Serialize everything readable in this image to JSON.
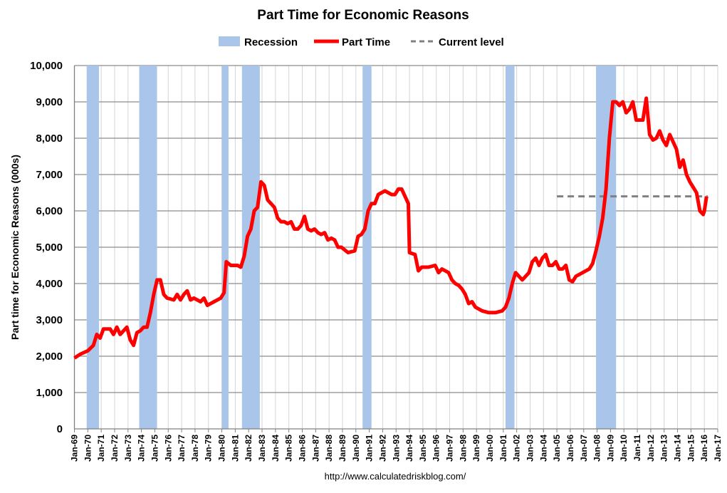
{
  "chart_data": {
    "type": "line",
    "title": "Part Time for Economic Reasons",
    "ylabel": "Part time for Economic Reasons (000s)",
    "xlabel": "",
    "source": "http://www.calculatedriskblog.com/",
    "ylim": [
      0,
      10000
    ],
    "xlim": [
      "1969-01",
      "2017-01"
    ],
    "yticks": [
      "0",
      "1,000",
      "2,000",
      "3,000",
      "4,000",
      "5,000",
      "6,000",
      "7,000",
      "8,000",
      "9,000",
      "10,000"
    ],
    "xticks": [
      "Jan-69",
      "Jan-70",
      "Jan-71",
      "Jan-72",
      "Jan-73",
      "Jan-74",
      "Jan-75",
      "Jan-76",
      "Jan-77",
      "Jan-78",
      "Jan-79",
      "Jan-80",
      "Jan-81",
      "Jan-82",
      "Jan-83",
      "Jan-84",
      "Jan-85",
      "Jan-86",
      "Jan-87",
      "Jan-88",
      "Jan-89",
      "Jan-90",
      "Jan-91",
      "Jan-92",
      "Jan-93",
      "Jan-94",
      "Jan-95",
      "Jan-96",
      "Jan-97",
      "Jan-98",
      "Jan-99",
      "Jan-00",
      "Jan-01",
      "Jan-02",
      "Jan-03",
      "Jan-04",
      "Jan-05",
      "Jan-06",
      "Jan-07",
      "Jan-08",
      "Jan-09",
      "Jan-10",
      "Jan-11",
      "Jan-12",
      "Jan-13",
      "Jan-14",
      "Jan-15",
      "Jan-16",
      "Jan-17"
    ],
    "grid": true,
    "legend": {
      "placement": "top",
      "entries": [
        {
          "name": "Recession",
          "kind": "band",
          "color": "#a9c6ea"
        },
        {
          "name": "Part Time",
          "kind": "line",
          "color": "#ff0000"
        },
        {
          "name": "Current level",
          "kind": "dashed",
          "color": "#808080"
        }
      ]
    },
    "recessions": [
      [
        "1969-12",
        "1970-11"
      ],
      [
        "1973-11",
        "1975-03"
      ],
      [
        "1980-01",
        "1980-07"
      ],
      [
        "1981-07",
        "1982-11"
      ],
      [
        "1990-07",
        "1991-03"
      ],
      [
        "2001-03",
        "2001-11"
      ],
      [
        "2007-12",
        "2009-06"
      ]
    ],
    "current_level": {
      "value": 6400,
      "from": "2005-01",
      "to": "2016-04"
    },
    "series": [
      {
        "name": "Part Time",
        "color": "#ff0000",
        "points": [
          [
            "1969-01",
            1950
          ],
          [
            "1969-06",
            2050
          ],
          [
            "1970-01",
            2150
          ],
          [
            "1970-06",
            2300
          ],
          [
            "1970-09",
            2600
          ],
          [
            "1970-12",
            2500
          ],
          [
            "1971-03",
            2750
          ],
          [
            "1971-09",
            2750
          ],
          [
            "1971-12",
            2600
          ],
          [
            "1972-03",
            2800
          ],
          [
            "1972-06",
            2600
          ],
          [
            "1972-09",
            2700
          ],
          [
            "1972-12",
            2800
          ],
          [
            "1973-03",
            2450
          ],
          [
            "1973-06",
            2300
          ],
          [
            "1973-09",
            2650
          ],
          [
            "1973-12",
            2700
          ],
          [
            "1974-03",
            2800
          ],
          [
            "1974-06",
            2800
          ],
          [
            "1974-09",
            3200
          ],
          [
            "1974-12",
            3700
          ],
          [
            "1975-03",
            4100
          ],
          [
            "1975-06",
            4100
          ],
          [
            "1975-09",
            3700
          ],
          [
            "1975-12",
            3600
          ],
          [
            "1976-06",
            3550
          ],
          [
            "1976-09",
            3700
          ],
          [
            "1976-12",
            3550
          ],
          [
            "1977-03",
            3700
          ],
          [
            "1977-06",
            3800
          ],
          [
            "1977-09",
            3550
          ],
          [
            "1977-12",
            3600
          ],
          [
            "1978-06",
            3500
          ],
          [
            "1978-09",
            3600
          ],
          [
            "1978-12",
            3400
          ],
          [
            "1979-06",
            3500
          ],
          [
            "1979-12",
            3600
          ],
          [
            "1980-03",
            3750
          ],
          [
            "1980-05",
            4600
          ],
          [
            "1980-09",
            4500
          ],
          [
            "1981-03",
            4500
          ],
          [
            "1981-06",
            4450
          ],
          [
            "1981-09",
            4750
          ],
          [
            "1981-12",
            5300
          ],
          [
            "1982-03",
            5500
          ],
          [
            "1982-06",
            6000
          ],
          [
            "1982-09",
            6100
          ],
          [
            "1982-12",
            6800
          ],
          [
            "1983-03",
            6700
          ],
          [
            "1983-06",
            6300
          ],
          [
            "1983-12",
            6100
          ],
          [
            "1984-03",
            5800
          ],
          [
            "1984-06",
            5700
          ],
          [
            "1984-09",
            5700
          ],
          [
            "1984-12",
            5650
          ],
          [
            "1985-03",
            5700
          ],
          [
            "1985-06",
            5500
          ],
          [
            "1985-09",
            5500
          ],
          [
            "1985-12",
            5600
          ],
          [
            "1986-03",
            5850
          ],
          [
            "1986-06",
            5500
          ],
          [
            "1986-09",
            5450
          ],
          [
            "1986-12",
            5500
          ],
          [
            "1987-03",
            5400
          ],
          [
            "1987-06",
            5350
          ],
          [
            "1987-09",
            5400
          ],
          [
            "1987-12",
            5200
          ],
          [
            "1988-03",
            5250
          ],
          [
            "1988-06",
            5200
          ],
          [
            "1988-09",
            5000
          ],
          [
            "1988-12",
            5000
          ],
          [
            "1989-06",
            4850
          ],
          [
            "1989-12",
            4900
          ],
          [
            "1990-03",
            5300
          ],
          [
            "1990-06",
            5350
          ],
          [
            "1990-09",
            5500
          ],
          [
            "1990-12",
            6000
          ],
          [
            "1991-03",
            6200
          ],
          [
            "1991-06",
            6200
          ],
          [
            "1991-09",
            6450
          ],
          [
            "1991-12",
            6500
          ],
          [
            "1992-03",
            6550
          ],
          [
            "1992-06",
            6500
          ],
          [
            "1992-09",
            6450
          ],
          [
            "1992-12",
            6450
          ],
          [
            "1993-03",
            6600
          ],
          [
            "1993-06",
            6600
          ],
          [
            "1993-09",
            6400
          ],
          [
            "1993-12",
            6200
          ],
          [
            "1994-01",
            4850
          ],
          [
            "1994-06",
            4800
          ],
          [
            "1994-09",
            4350
          ],
          [
            "1994-12",
            4450
          ],
          [
            "1995-06",
            4450
          ],
          [
            "1995-12",
            4500
          ],
          [
            "1996-03",
            4300
          ],
          [
            "1996-06",
            4400
          ],
          [
            "1996-09",
            4350
          ],
          [
            "1996-12",
            4300
          ],
          [
            "1997-03",
            4100
          ],
          [
            "1997-06",
            4000
          ],
          [
            "1997-09",
            3950
          ],
          [
            "1997-12",
            3850
          ],
          [
            "1998-03",
            3700
          ],
          [
            "1998-06",
            3450
          ],
          [
            "1998-09",
            3500
          ],
          [
            "1998-12",
            3350
          ],
          [
            "1999-06",
            3250
          ],
          [
            "1999-12",
            3200
          ],
          [
            "2000-06",
            3200
          ],
          [
            "2000-12",
            3250
          ],
          [
            "2001-03",
            3350
          ],
          [
            "2001-06",
            3600
          ],
          [
            "2001-09",
            4000
          ],
          [
            "2001-12",
            4300
          ],
          [
            "2002-06",
            4100
          ],
          [
            "2002-12",
            4300
          ],
          [
            "2003-03",
            4600
          ],
          [
            "2003-06",
            4700
          ],
          [
            "2003-09",
            4500
          ],
          [
            "2003-12",
            4700
          ],
          [
            "2004-03",
            4800
          ],
          [
            "2004-06",
            4500
          ],
          [
            "2004-09",
            4500
          ],
          [
            "2004-12",
            4600
          ],
          [
            "2005-03",
            4400
          ],
          [
            "2005-06",
            4400
          ],
          [
            "2005-09",
            4500
          ],
          [
            "2005-12",
            4100
          ],
          [
            "2006-03",
            4050
          ],
          [
            "2006-06",
            4200
          ],
          [
            "2006-09",
            4250
          ],
          [
            "2006-12",
            4300
          ],
          [
            "2007-03",
            4350
          ],
          [
            "2007-06",
            4400
          ],
          [
            "2007-09",
            4550
          ],
          [
            "2007-12",
            4900
          ],
          [
            "2008-03",
            5300
          ],
          [
            "2008-06",
            5800
          ],
          [
            "2008-09",
            6600
          ],
          [
            "2008-12",
            8000
          ],
          [
            "2009-03",
            9000
          ],
          [
            "2009-06",
            9000
          ],
          [
            "2009-09",
            8900
          ],
          [
            "2009-12",
            9000
          ],
          [
            "2010-03",
            8700
          ],
          [
            "2010-06",
            8800
          ],
          [
            "2010-09",
            9000
          ],
          [
            "2010-12",
            8500
          ],
          [
            "2011-03",
            8500
          ],
          [
            "2011-06",
            8500
          ],
          [
            "2011-09",
            9100
          ],
          [
            "2011-12",
            8100
          ],
          [
            "2012-03",
            7950
          ],
          [
            "2012-06",
            8000
          ],
          [
            "2012-09",
            8200
          ],
          [
            "2012-12",
            7950
          ],
          [
            "2013-03",
            7800
          ],
          [
            "2013-06",
            8100
          ],
          [
            "2013-09",
            7900
          ],
          [
            "2013-12",
            7700
          ],
          [
            "2014-03",
            7200
          ],
          [
            "2014-06",
            7400
          ],
          [
            "2014-09",
            7000
          ],
          [
            "2014-12",
            6800
          ],
          [
            "2015-03",
            6650
          ],
          [
            "2015-06",
            6500
          ],
          [
            "2015-09",
            6000
          ],
          [
            "2015-12",
            5900
          ],
          [
            "2016-01",
            6000
          ],
          [
            "2016-03",
            6400
          ]
        ]
      }
    ]
  }
}
